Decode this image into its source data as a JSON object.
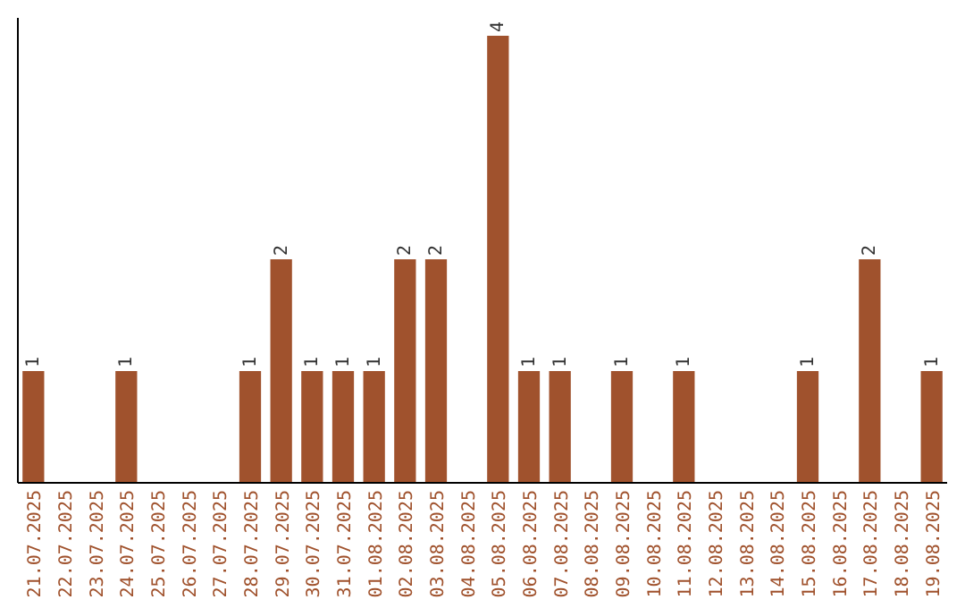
{
  "chart_data": {
    "type": "bar",
    "categories": [
      "21.07.2025",
      "22.07.2025",
      "23.07.2025",
      "24.07.2025",
      "25.07.2025",
      "26.07.2025",
      "27.07.2025",
      "28.07.2025",
      "29.07.2025",
      "30.07.2025",
      "31.07.2025",
      "01.08.2025",
      "02.08.2025",
      "03.08.2025",
      "04.08.2025",
      "05.08.2025",
      "06.08.2025",
      "07.08.2025",
      "08.08.2025",
      "09.08.2025",
      "10.08.2025",
      "11.08.2025",
      "12.08.2025",
      "13.08.2025",
      "14.08.2025",
      "15.08.2025",
      "16.08.2025",
      "17.08.2025",
      "18.08.2025",
      "19.08.2025"
    ],
    "values": [
      1,
      0,
      0,
      1,
      0,
      0,
      0,
      1,
      2,
      1,
      1,
      1,
      2,
      2,
      0,
      4,
      1,
      1,
      0,
      1,
      0,
      1,
      0,
      0,
      0,
      1,
      0,
      2,
      0,
      1
    ],
    "value_labels": [
      "1",
      null,
      null,
      "1",
      null,
      null,
      null,
      "1",
      "2",
      "1",
      "1",
      "1",
      "2",
      "2",
      null,
      "4",
      "1",
      "1",
      null,
      "1",
      null,
      "1",
      null,
      null,
      null,
      "1",
      null,
      "2",
      null,
      "1"
    ],
    "color": "#a0522d"
  }
}
